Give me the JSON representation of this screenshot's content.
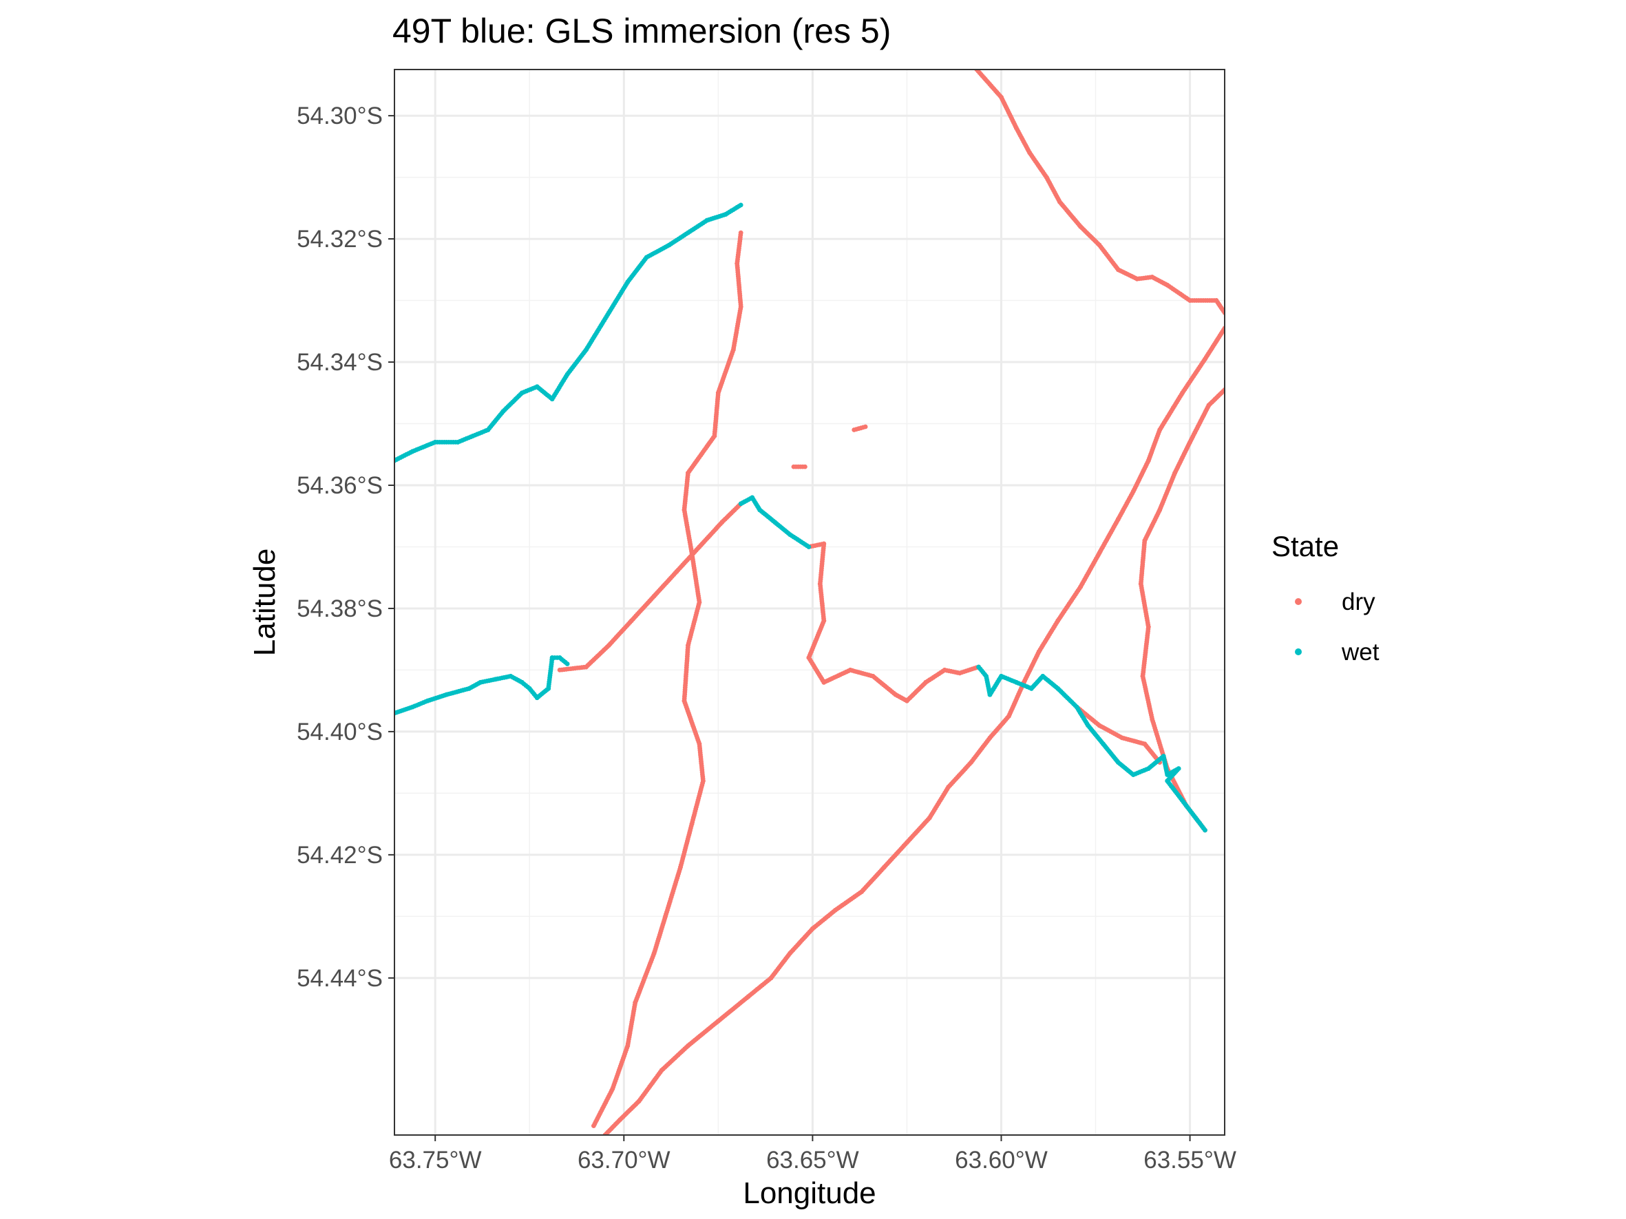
{
  "chart_data": {
    "type": "scatter",
    "title": "49T blue: GLS immersion (res 5)",
    "xlabel": "Longitude",
    "ylabel": "Latitude",
    "xlim": [
      -63.7608,
      -63.5408
    ],
    "ylim": [
      -54.4655,
      -54.2925
    ],
    "x_ticks": [
      {
        "value": -63.75,
        "label": "63.75°W"
      },
      {
        "value": -63.7,
        "label": "63.70°W"
      },
      {
        "value": -63.65,
        "label": "63.65°W"
      },
      {
        "value": -63.6,
        "label": "63.60°W"
      },
      {
        "value": -63.55,
        "label": "63.55°W"
      }
    ],
    "y_ticks": [
      {
        "value": -54.3,
        "label": "54.30°S"
      },
      {
        "value": -54.32,
        "label": "54.32°S"
      },
      {
        "value": -54.34,
        "label": "54.34°S"
      },
      {
        "value": -54.36,
        "label": "54.36°S"
      },
      {
        "value": -54.38,
        "label": "54.38°S"
      },
      {
        "value": -54.4,
        "label": "54.40°S"
      },
      {
        "value": -54.42,
        "label": "54.42°S"
      },
      {
        "value": -54.44,
        "label": "54.44°S"
      }
    ],
    "grid": true,
    "legend": {
      "title": "State",
      "position": "right"
    },
    "series": [
      {
        "name": "dry",
        "color": "#F8766D",
        "segments": [
          [
            [
              -63.6065,
              -54.2925
            ],
            [
              -63.6,
              -54.297
            ],
            [
              -63.596,
              -54.302
            ],
            [
              -63.5925,
              -54.306
            ],
            [
              -63.588,
              -54.31
            ],
            [
              -63.5845,
              -54.314
            ],
            [
              -63.579,
              -54.318
            ],
            [
              -63.574,
              -54.321
            ],
            [
              -63.569,
              -54.325
            ],
            [
              -63.564,
              -54.3265
            ],
            [
              -63.56,
              -54.3262
            ],
            [
              -63.556,
              -54.3275
            ],
            [
              -63.55,
              -54.33
            ],
            [
              -63.543,
              -54.33
            ],
            [
              -63.5408,
              -54.332
            ]
          ],
          [
            [
              -63.5408,
              -54.3345
            ],
            [
              -63.546,
              -54.3395
            ],
            [
              -63.552,
              -54.345
            ],
            [
              -63.558,
              -54.351
            ],
            [
              -63.561,
              -54.356
            ],
            [
              -63.565,
              -54.361
            ],
            [
              -63.569,
              -54.3655
            ],
            [
              -63.574,
              -54.371
            ],
            [
              -63.579,
              -54.3765
            ],
            [
              -63.585,
              -54.382
            ],
            [
              -63.59,
              -54.387
            ],
            [
              -63.594,
              -54.392
            ],
            [
              -63.598,
              -54.3975
            ],
            [
              -63.603,
              -54.401
            ],
            [
              -63.608,
              -54.405
            ],
            [
              -63.614,
              -54.409
            ],
            [
              -63.619,
              -54.414
            ],
            [
              -63.625,
              -54.418
            ],
            [
              -63.631,
              -54.422
            ],
            [
              -63.637,
              -54.426
            ],
            [
              -63.644,
              -54.429
            ],
            [
              -63.65,
              -54.432
            ],
            [
              -63.656,
              -54.436
            ],
            [
              -63.661,
              -54.44
            ],
            [
              -63.667,
              -54.443
            ],
            [
              -63.675,
              -54.447
            ],
            [
              -63.683,
              -54.451
            ],
            [
              -63.69,
              -54.455
            ],
            [
              -63.696,
              -54.46
            ],
            [
              -63.701,
              -54.463
            ],
            [
              -63.705,
              -54.4655
            ]
          ],
          [
            [
              -63.5408,
              -54.3445
            ],
            [
              -63.545,
              -54.347
            ],
            [
              -63.55,
              -54.353
            ],
            [
              -63.554,
              -54.358
            ],
            [
              -63.558,
              -54.364
            ],
            [
              -63.562,
              -54.369
            ],
            [
              -63.563,
              -54.376
            ],
            [
              -63.561,
              -54.383
            ],
            [
              -63.5625,
              -54.391
            ],
            [
              -63.56,
              -54.398
            ],
            [
              -63.556,
              -54.406
            ],
            [
              -63.551,
              -54.412
            ],
            [
              -63.546,
              -54.416
            ]
          ],
          [
            [
              -63.669,
              -54.319
            ],
            [
              -63.67,
              -54.324
            ],
            [
              -63.669,
              -54.331
            ],
            [
              -63.671,
              -54.338
            ],
            [
              -63.675,
              -54.345
            ],
            [
              -63.676,
              -54.352
            ],
            [
              -63.683,
              -54.358
            ],
            [
              -63.684,
              -54.364
            ],
            [
              -63.682,
              -54.371
            ],
            [
              -63.68,
              -54.379
            ],
            [
              -63.683,
              -54.386
            ],
            [
              -63.684,
              -54.395
            ],
            [
              -63.68,
              -54.402
            ],
            [
              -63.679,
              -54.408
            ],
            [
              -63.682,
              -54.415
            ],
            [
              -63.685,
              -54.422
            ],
            [
              -63.689,
              -54.43
            ],
            [
              -63.692,
              -54.436
            ],
            [
              -63.697,
              -54.444
            ],
            [
              -63.699,
              -54.451
            ],
            [
              -63.703,
              -54.458
            ],
            [
              -63.708,
              -54.464
            ]
          ],
          [
            [
              -63.717,
              -54.39
            ],
            [
              -63.71,
              -54.3895
            ],
            [
              -63.704,
              -54.386
            ],
            [
              -63.698,
              -54.382
            ],
            [
              -63.692,
              -54.378
            ],
            [
              -63.686,
              -54.374
            ],
            [
              -63.68,
              -54.37
            ],
            [
              -63.674,
              -54.366
            ],
            [
              -63.669,
              -54.363
            ]
          ],
          [
            [
              -63.651,
              -54.37
            ],
            [
              -63.647,
              -54.3695
            ],
            [
              -63.648,
              -54.376
            ],
            [
              -63.647,
              -54.382
            ],
            [
              -63.651,
              -54.388
            ],
            [
              -63.647,
              -54.392
            ],
            [
              -63.64,
              -54.39
            ],
            [
              -63.634,
              -54.391
            ],
            [
              -63.628,
              -54.394
            ],
            [
              -63.625,
              -54.395
            ],
            [
              -63.62,
              -54.392
            ],
            [
              -63.615,
              -54.39
            ],
            [
              -63.611,
              -54.3905
            ],
            [
              -63.606,
              -54.3895
            ]
          ],
          [
            [
              -63.58,
              -54.396
            ],
            [
              -63.574,
              -54.399
            ],
            [
              -63.568,
              -54.401
            ],
            [
              -63.562,
              -54.402
            ],
            [
              -63.558,
              -54.405
            ]
          ],
          [
            [
              -63.639,
              -54.351
            ],
            [
              -63.636,
              -54.3505
            ]
          ],
          [
            [
              -63.655,
              -54.357
            ],
            [
              -63.652,
              -54.357
            ]
          ]
        ]
      },
      {
        "name": "wet",
        "color": "#00BFC4",
        "segments": [
          [
            [
              -63.7608,
              -54.356
            ],
            [
              -63.756,
              -54.3545
            ],
            [
              -63.75,
              -54.353
            ],
            [
              -63.744,
              -54.353
            ],
            [
              -63.74,
              -54.352
            ],
            [
              -63.736,
              -54.351
            ],
            [
              -63.732,
              -54.348
            ],
            [
              -63.727,
              -54.345
            ],
            [
              -63.723,
              -54.344
            ],
            [
              -63.719,
              -54.346
            ],
            [
              -63.715,
              -54.342
            ],
            [
              -63.71,
              -54.338
            ],
            [
              -63.704,
              -54.332
            ],
            [
              -63.699,
              -54.327
            ],
            [
              -63.694,
              -54.323
            ],
            [
              -63.688,
              -54.321
            ],
            [
              -63.683,
              -54.319
            ],
            [
              -63.678,
              -54.317
            ],
            [
              -63.673,
              -54.316
            ],
            [
              -63.669,
              -54.3145
            ]
          ],
          [
            [
              -63.7608,
              -54.397
            ],
            [
              -63.756,
              -54.396
            ],
            [
              -63.752,
              -54.395
            ],
            [
              -63.747,
              -54.394
            ],
            [
              -63.741,
              -54.393
            ],
            [
              -63.738,
              -54.392
            ],
            [
              -63.734,
              -54.3915
            ],
            [
              -63.73,
              -54.391
            ],
            [
              -63.727,
              -54.392
            ],
            [
              -63.725,
              -54.393
            ],
            [
              -63.723,
              -54.3945
            ],
            [
              -63.72,
              -54.393
            ],
            [
              -63.719,
              -54.388
            ],
            [
              -63.717,
              -54.388
            ],
            [
              -63.715,
              -54.389
            ]
          ],
          [
            [
              -63.669,
              -54.363
            ],
            [
              -63.666,
              -54.362
            ],
            [
              -63.664,
              -54.364
            ],
            [
              -63.66,
              -54.366
            ],
            [
              -63.656,
              -54.368
            ],
            [
              -63.651,
              -54.37
            ]
          ],
          [
            [
              -63.606,
              -54.3895
            ],
            [
              -63.604,
              -54.391
            ],
            [
              -63.603,
              -54.394
            ],
            [
              -63.6,
              -54.391
            ],
            [
              -63.596,
              -54.392
            ],
            [
              -63.592,
              -54.393
            ],
            [
              -63.589,
              -54.391
            ],
            [
              -63.585,
              -54.393
            ],
            [
              -63.58,
              -54.396
            ],
            [
              -63.577,
              -54.399
            ],
            [
              -63.573,
              -54.402
            ],
            [
              -63.569,
              -54.405
            ],
            [
              -63.565,
              -54.407
            ],
            [
              -63.561,
              -54.406
            ],
            [
              -63.557,
              -54.404
            ],
            [
              -63.556,
              -54.407
            ],
            [
              -63.553,
              -54.406
            ],
            [
              -63.556,
              -54.408
            ],
            [
              -63.551,
              -54.412
            ],
            [
              -63.546,
              -54.416
            ]
          ]
        ]
      }
    ]
  }
}
